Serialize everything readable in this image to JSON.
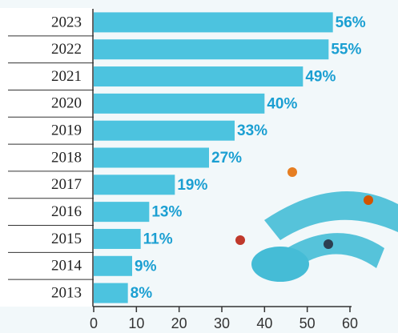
{
  "chart_data": {
    "type": "bar",
    "orientation": "horizontal",
    "categories": [
      "2023",
      "2022",
      "2021",
      "2020",
      "2019",
      "2018",
      "2017",
      "2016",
      "2015",
      "2014",
      "2013"
    ],
    "values": [
      56,
      55,
      49,
      40,
      33,
      27,
      19,
      13,
      11,
      9,
      8
    ],
    "value_labels": [
      "56%",
      "55%",
      "49%",
      "40%",
      "33%",
      "27%",
      "19%",
      "13%",
      "11%",
      "9%",
      "8%"
    ],
    "color": "#4cc3df",
    "xlim": [
      0,
      60
    ],
    "xticks": [
      0,
      10,
      20,
      30,
      40,
      50,
      60
    ]
  }
}
